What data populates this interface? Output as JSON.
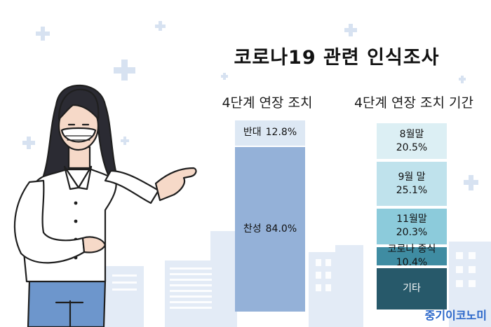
{
  "title": "코로나19 관련 인식조사",
  "brand": "중기이코노미",
  "chart_data": [
    {
      "type": "bar",
      "stacked": true,
      "title": "4단계 연장 조치",
      "unit": "%",
      "series": [
        {
          "name": "반대",
          "value": 12.8,
          "label": "12.8%",
          "color": "#dde8f4"
        },
        {
          "name": "찬성",
          "value": 84.0,
          "label": "84.0%",
          "color": "#94b1d8"
        }
      ]
    },
    {
      "type": "bar",
      "stacked": true,
      "title": "4단계 연장 조치 기간",
      "unit": "%",
      "series": [
        {
          "name": "8월말",
          "value": 20.5,
          "label": "20.5%",
          "color": "#dceff4"
        },
        {
          "name": "9월 말",
          "value": 25.1,
          "label": "25.1%",
          "color": "#bfe2ec"
        },
        {
          "name": "11월말",
          "value": 20.3,
          "label": "20.3%",
          "color": "#8ccbdb"
        },
        {
          "name": "코로나 종식",
          "value": 10.4,
          "label": "10.4%",
          "color": "#3f8ca2"
        },
        {
          "name": "기타",
          "value": null,
          "label": "",
          "color": "#27596a"
        }
      ]
    }
  ]
}
